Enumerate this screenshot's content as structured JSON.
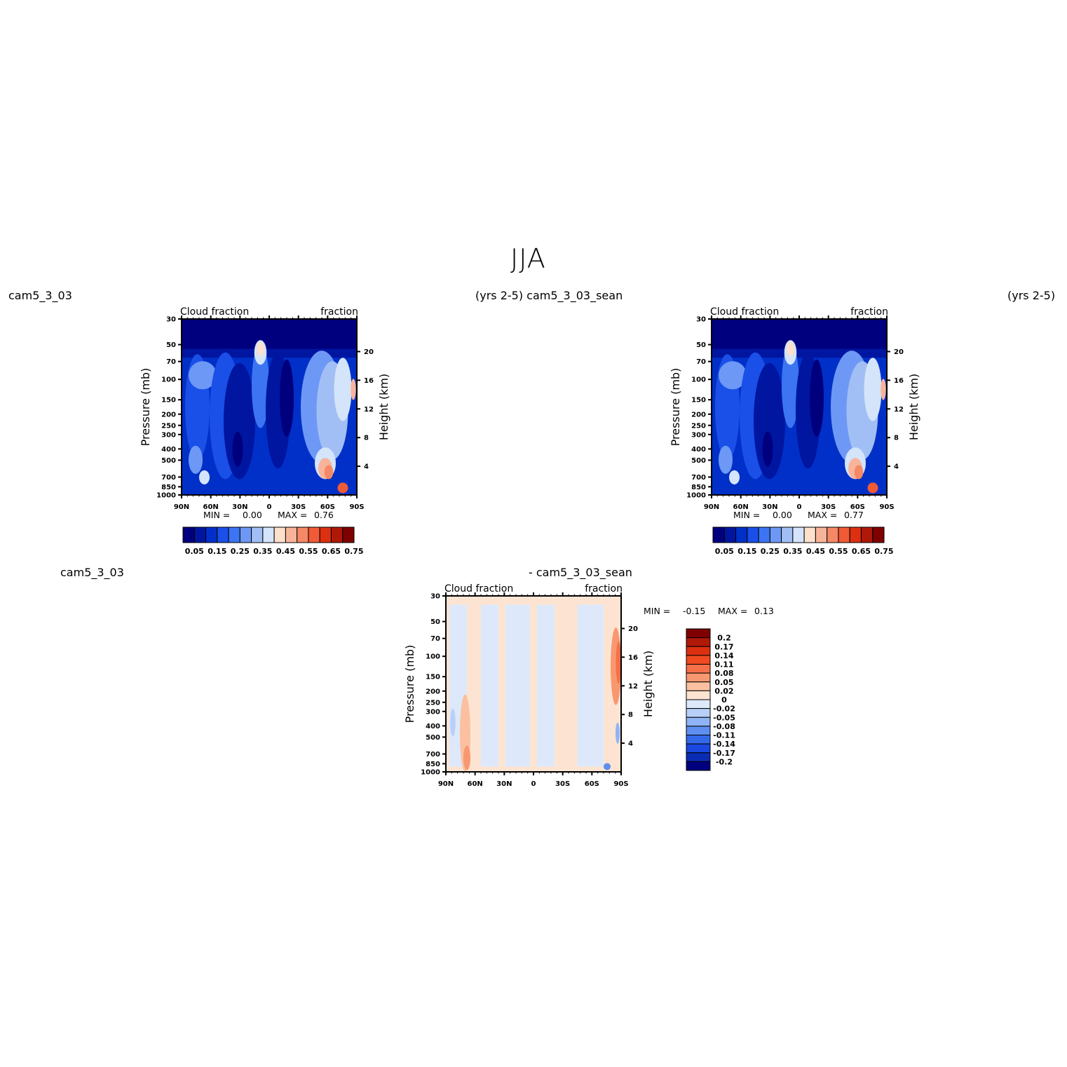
{
  "page": {
    "title": "JJA",
    "top_left_label": "cam5_3_03",
    "top_center_label": "(yrs 2-5) cam5_3_03_sean",
    "top_right_label": "(yrs 2-5)",
    "bottom_left_label": "cam5_3_03",
    "bottom_center_label": "- cam5_3_03_sean"
  },
  "panels": [
    {
      "id": "panel-1",
      "left_title": "Cloud fraction",
      "right_title": "fraction",
      "ylabel": "Pressure (mb)",
      "ylabel_right": "Height (km)",
      "min_text": "MIN =",
      "min_value": "0.00",
      "max_text": "MAX =",
      "max_value": "0.76"
    },
    {
      "id": "panel-2",
      "left_title": "Cloud fraction",
      "right_title": "fraction",
      "ylabel": "Pressure (mb)",
      "ylabel_right": "Height (km)",
      "min_text": "MIN =",
      "min_value": "0.00",
      "max_text": "MAX =",
      "max_value": "0.77"
    },
    {
      "id": "panel-diff",
      "left_title": "Cloud fraction",
      "right_title": "fraction",
      "ylabel": "Pressure (mb)",
      "ylabel_right": "Height (km)",
      "min_text": "MIN =",
      "min_value": "-0.15",
      "max_text": "MAX =",
      "max_value": "0.13"
    }
  ],
  "chart_data": [
    {
      "type": "heatmap",
      "panel": "panel-1",
      "title": "Cloud fraction",
      "xlabel": "",
      "ylabel": "Pressure (mb)",
      "ylabel_right": "Height (km)",
      "x_ticks": [
        "90N",
        "60N",
        "30N",
        "0",
        "30S",
        "60S",
        "90S"
      ],
      "y_ticks": [
        "30",
        "50",
        "70",
        "100",
        "150",
        "200",
        "250",
        "300",
        "400",
        "500",
        "700",
        "850",
        "1000"
      ],
      "y_right_ticks": [
        "20",
        "16",
        "12",
        "8",
        "4"
      ],
      "ylim": [
        30,
        1000
      ],
      "min": 0.0,
      "max": 0.76,
      "colorbar_labels": [
        "0.05",
        "0.15",
        "0.25",
        "0.35",
        "0.45",
        "0.55",
        "0.65",
        "0.75"
      ]
    },
    {
      "type": "heatmap",
      "panel": "panel-2",
      "title": "Cloud fraction",
      "xlabel": "",
      "ylabel": "Pressure (mb)",
      "ylabel_right": "Height (km)",
      "x_ticks": [
        "90N",
        "60N",
        "30N",
        "0",
        "30S",
        "60S",
        "90S"
      ],
      "y_ticks": [
        "30",
        "50",
        "70",
        "100",
        "150",
        "200",
        "250",
        "300",
        "400",
        "500",
        "700",
        "850",
        "1000"
      ],
      "y_right_ticks": [
        "20",
        "16",
        "12",
        "8",
        "4"
      ],
      "ylim": [
        30,
        1000
      ],
      "min": 0.0,
      "max": 0.77,
      "colorbar_labels": [
        "0.05",
        "0.15",
        "0.25",
        "0.35",
        "0.45",
        "0.55",
        "0.65",
        "0.75"
      ]
    },
    {
      "type": "heatmap",
      "panel": "panel-diff",
      "title": "Cloud fraction",
      "xlabel": "",
      "ylabel": "Pressure (mb)",
      "ylabel_right": "Height (km)",
      "x_ticks": [
        "90N",
        "60N",
        "30N",
        "0",
        "30S",
        "60S",
        "90S"
      ],
      "y_ticks": [
        "30",
        "50",
        "70",
        "100",
        "150",
        "200",
        "250",
        "300",
        "400",
        "500",
        "700",
        "850",
        "1000"
      ],
      "y_right_ticks": [
        "20",
        "16",
        "12",
        "8",
        "4"
      ],
      "ylim": [
        30,
        1000
      ],
      "min": -0.15,
      "max": 0.13,
      "colorbar_labels": [
        "0.2",
        "0.17",
        "0.14",
        "0.11",
        "0.08",
        "0.05",
        "0.02",
        "0",
        "-0.02",
        "-0.05",
        "-0.08",
        "-0.11",
        "-0.14",
        "-0.17",
        "-0.2"
      ]
    }
  ],
  "colors": {
    "abs_scale": [
      "#00007f",
      "#0016a0",
      "#0030c8",
      "#1a4fe8",
      "#3c74f2",
      "#6d98f5",
      "#a2bff5",
      "#d4e4fa",
      "#fde0cc",
      "#f8b49a",
      "#f58866",
      "#f05a36",
      "#dc3010",
      "#b01808",
      "#7f0000"
    ],
    "diff_scale": [
      "#7f0000",
      "#b01808",
      "#dc3010",
      "#f04a20",
      "#f57048",
      "#f89870",
      "#fbc0a0",
      "#fde4d2",
      "#dde9fa",
      "#b8d0f8",
      "#8fb4f6",
      "#5e8ef0",
      "#3468ea",
      "#1a48e0",
      "#0a2cb4",
      "#00007f"
    ]
  }
}
